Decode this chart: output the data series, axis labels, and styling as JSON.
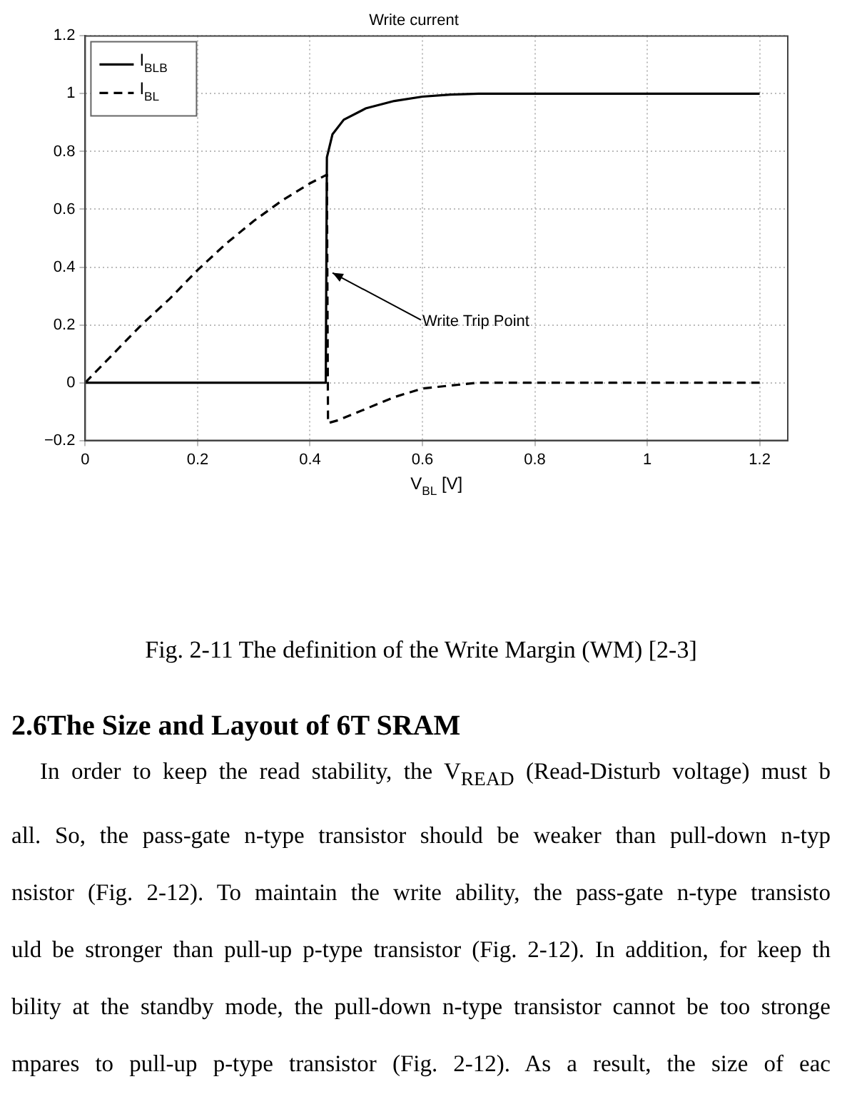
{
  "chart_data": {
    "type": "line",
    "title": "Write current",
    "xlabel": "V$_{BL}$ [V]",
    "xlim": [
      0,
      1.25
    ],
    "xticks": [
      0,
      0.2,
      0.4,
      0.6,
      0.8,
      1,
      1.2
    ],
    "ylim": [
      -0.2,
      1.2
    ],
    "yticks": [
      {
        "value": -0.2,
        "label": "−0.2"
      },
      0,
      0.2,
      0.4,
      0.6,
      0.8,
      1,
      1.2
    ],
    "grid": true,
    "legend": "top left",
    "marker": "none",
    "series": [
      {
        "name": "I$_{BLB}$",
        "color": "#000000",
        "line_style": "solid",
        "x": [
          0,
          0.2,
          0.428,
          0.43,
          0.44,
          0.46,
          0.5,
          0.55,
          0.6,
          0.65,
          0.7,
          0.8,
          1,
          1.2
        ],
        "values": [
          0,
          0,
          0,
          0.78,
          0.86,
          0.91,
          0.95,
          0.975,
          0.99,
          0.997,
          1,
          1,
          1,
          1
        ]
      },
      {
        "name": "I$_{BL}$",
        "color": "#000000",
        "line_style": "dashed",
        "x": [
          0,
          0.05,
          0.1,
          0.15,
          0.2,
          0.25,
          0.3,
          0.35,
          0.4,
          0.43,
          0.432,
          0.45,
          0.5,
          0.55,
          0.6,
          0.65,
          0.7,
          0.8,
          1,
          1.2
        ],
        "values": [
          0,
          0.1,
          0.2,
          0.29,
          0.39,
          0.48,
          0.56,
          0.63,
          0.69,
          0.72,
          -0.14,
          -0.13,
          -0.09,
          -0.05,
          -0.02,
          -0.01,
          0,
          0,
          0,
          0
        ]
      }
    ],
    "annotations": [
      {
        "text": "Write Trip Point",
        "x": 0.44,
        "y": 0.38
      },
      "Fig. 2-11 The definition of the Write Margin (WM) [2-3]",
      "2.6The Size and Layout of 6T SRAM",
      "In order to keep the read stability, the V$_{READ}$ (Read-Disturb voltage) must b",
      "all. So, the pass-gate n-type transistor should be weaker than pull-down n-typ",
      "nsistor (Fig. 2-12). To maintain the write ability, the pass-gate n-type transisto",
      "uld be stronger than pull-up p-type transistor (Fig. 2-12). In addition, for keep th",
      "bility at the standby mode, the pull-down n-type transistor cannot be too stronge",
      "mpares to pull-up p-type transistor (Fig. 2-12). As a result, the size of eac"
    ]
  }
}
